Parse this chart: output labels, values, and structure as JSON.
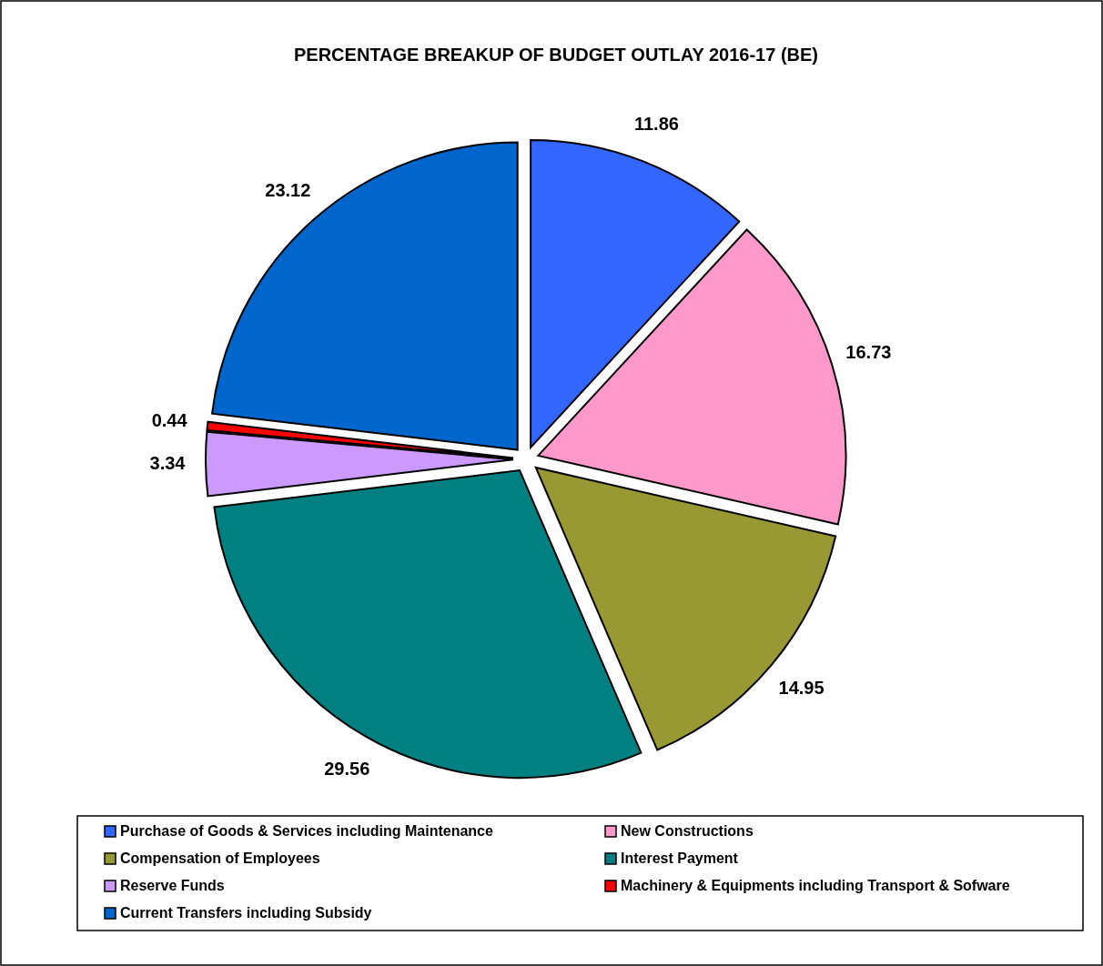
{
  "chart_data": {
    "type": "pie",
    "title": "PERCENTAGE BREAKUP OF BUDGET OUTLAY 2016-17 (BE)",
    "categories": [
      "Purchase of Goods & Services including Maintenance",
      "New Constructions",
      "Compensation of Employees",
      "Interest Payment",
      "Reserve Funds",
      "Machinery & Equipments including Transport & Sofware",
      "Current Transfers including Subsidy"
    ],
    "values": [
      11.86,
      16.73,
      14.95,
      29.56,
      3.34,
      0.44,
      23.12
    ],
    "colors": [
      "#3366ff",
      "#ff99cc",
      "#999933",
      "#008080",
      "#cc99ff",
      "#ff0000",
      "#0066cc"
    ],
    "data_labels": true,
    "legend": "bottom"
  }
}
